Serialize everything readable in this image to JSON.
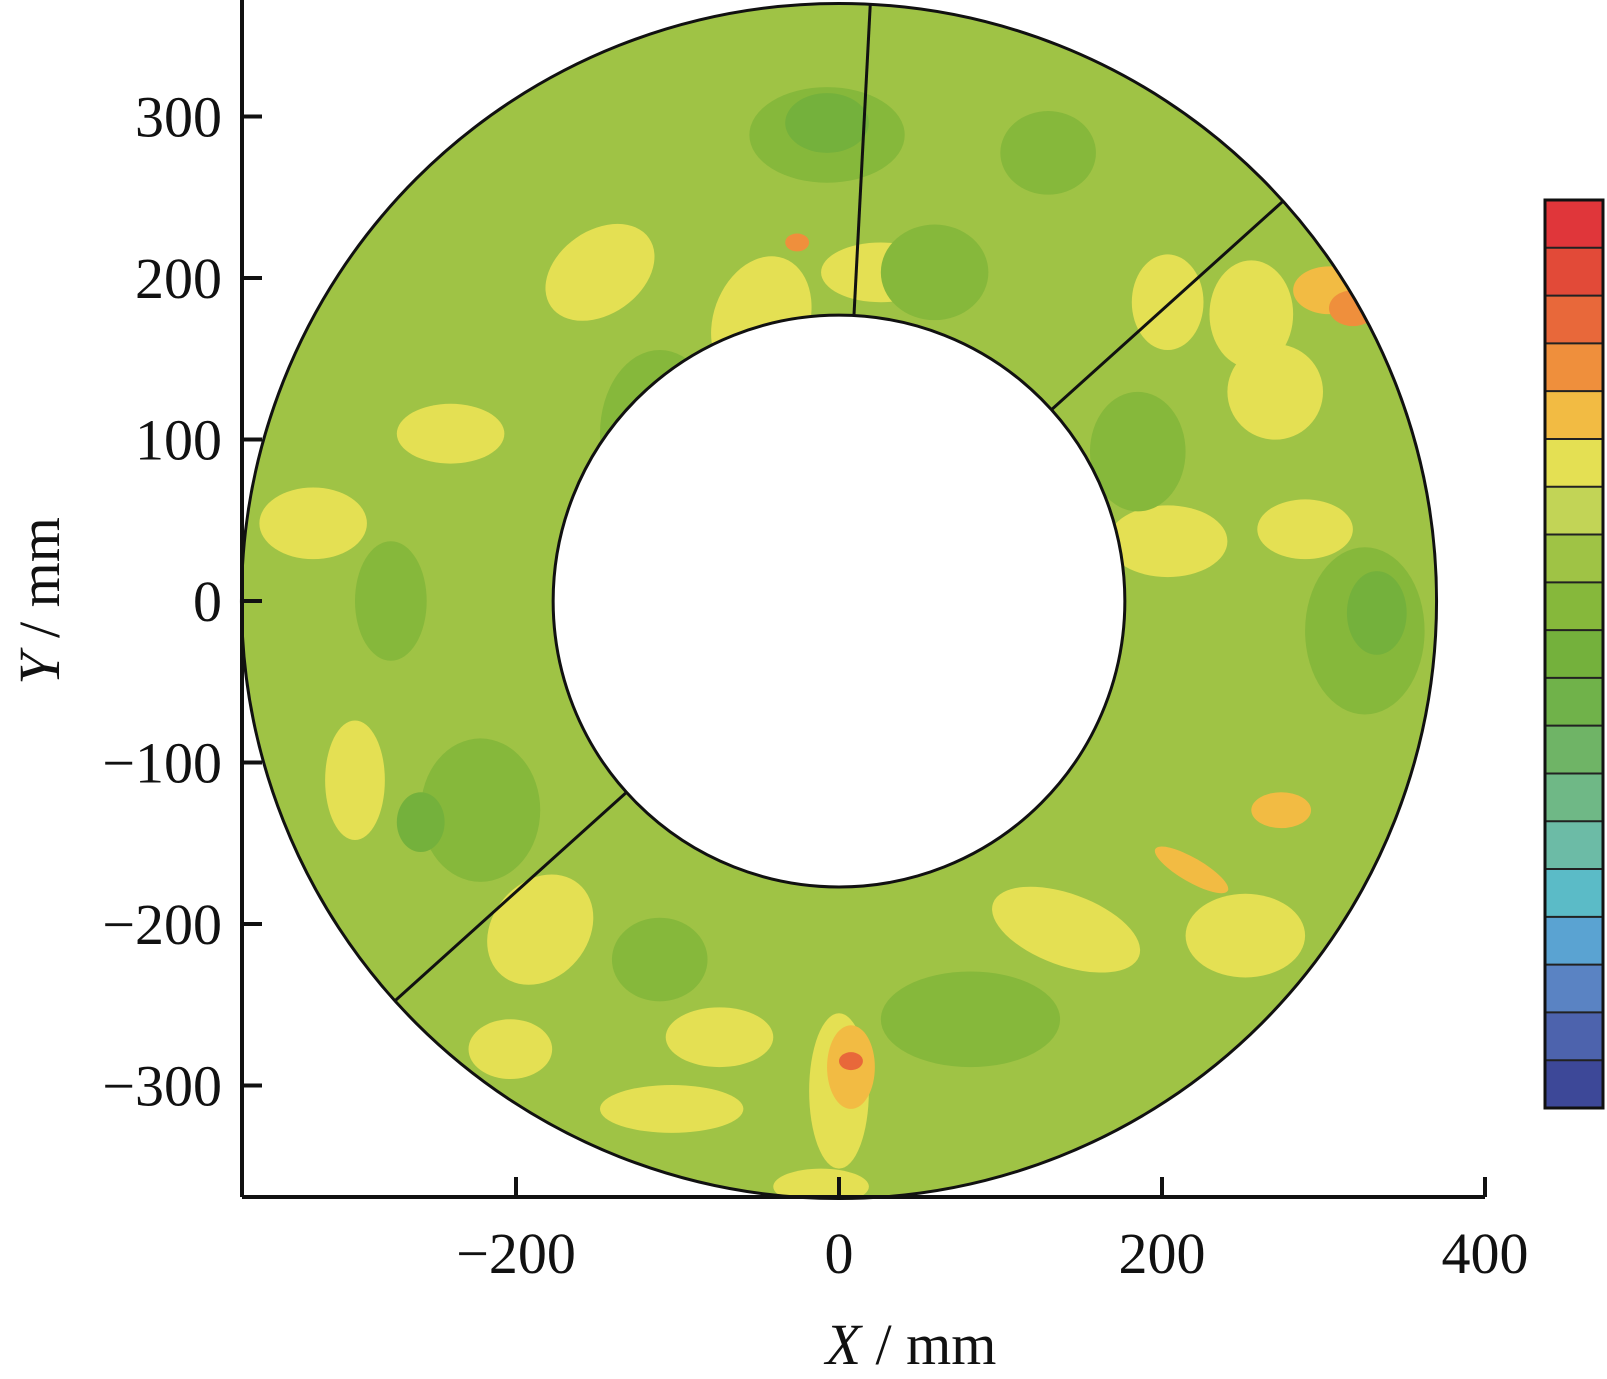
{
  "chart_data": {
    "type": "heatmap",
    "subtype": "annular contour map",
    "xlabel": {
      "var": "X",
      "unit": " / mm"
    },
    "ylabel": {
      "var": "Y",
      "unit": " / mm"
    },
    "x_ticks": [
      {
        "value": -200,
        "label": "−200"
      },
      {
        "value": 0,
        "label": "0"
      },
      {
        "value": 200,
        "label": "200"
      },
      {
        "value": 400,
        "label": "400"
      }
    ],
    "y_ticks": [
      {
        "value": 300,
        "label": "300"
      },
      {
        "value": 200,
        "label": "200"
      },
      {
        "value": 100,
        "label": "100"
      },
      {
        "value": 0,
        "label": "0"
      },
      {
        "value": -100,
        "label": "−100"
      },
      {
        "value": -200,
        "label": "−200"
      },
      {
        "value": -300,
        "label": "−300"
      }
    ],
    "xlim": [
      -370,
      400
    ],
    "ylim": [
      -370,
      370
    ],
    "grid": false,
    "annulus": {
      "outer_radius": 370,
      "inner_radius": 177,
      "segment_boundary_angles_deg": [
        87,
        42,
        222
      ]
    },
    "colorbar": {
      "position": "right",
      "tick_labels": "none",
      "colors": [
        "#e0363a",
        "#e24a38",
        "#e8683a",
        "#ef8f3c",
        "#f2bb43",
        "#e4e053",
        "#c2d456",
        "#9fc345",
        "#86b83b",
        "#74b13c",
        "#70b24a",
        "#6fb466",
        "#6fb886",
        "#6cbba6",
        "#5bbbc7",
        "#5aa3d2",
        "#5a83c3",
        "#4d63ad",
        "#3d4898"
      ]
    },
    "regions": [
      {
        "level": 5,
        "cx": -0.13,
        "cy": 0.47,
        "rx": 0.08,
        "ry": 0.11,
        "rot": 20
      },
      {
        "level": 5,
        "cx": 0.07,
        "cy": 0.55,
        "rx": 0.1,
        "ry": 0.05,
        "rot": 0
      },
      {
        "level": 5,
        "cx": -0.4,
        "cy": 0.55,
        "rx": 0.1,
        "ry": 0.07,
        "rot": -35
      },
      {
        "level": 5,
        "cx": 0.55,
        "cy": 0.5,
        "rx": 0.06,
        "ry": 0.08,
        "rot": 0
      },
      {
        "level": 5,
        "cx": 0.69,
        "cy": 0.48,
        "rx": 0.07,
        "ry": 0.09,
        "rot": 0
      },
      {
        "level": 5,
        "cx": 0.73,
        "cy": 0.35,
        "rx": 0.08,
        "ry": 0.08,
        "rot": 0
      },
      {
        "level": 5,
        "cx": 0.55,
        "cy": 0.1,
        "rx": 0.1,
        "ry": 0.06,
        "rot": 0
      },
      {
        "level": 5,
        "cx": 0.78,
        "cy": 0.12,
        "rx": 0.08,
        "ry": 0.05,
        "rot": 0
      },
      {
        "level": 5,
        "cx": -0.65,
        "cy": 0.28,
        "rx": 0.09,
        "ry": 0.05,
        "rot": 0
      },
      {
        "level": 5,
        "cx": -0.88,
        "cy": 0.13,
        "rx": 0.09,
        "ry": 0.06,
        "rot": 0
      },
      {
        "level": 5,
        "cx": -0.81,
        "cy": -0.3,
        "rx": 0.05,
        "ry": 0.1,
        "rot": 0
      },
      {
        "level": 5,
        "cx": -0.5,
        "cy": -0.55,
        "rx": 0.08,
        "ry": 0.1,
        "rot": 40
      },
      {
        "level": 5,
        "cx": -0.55,
        "cy": -0.75,
        "rx": 0.07,
        "ry": 0.05,
        "rot": 0
      },
      {
        "level": 5,
        "cx": -0.28,
        "cy": -0.85,
        "rx": 0.12,
        "ry": 0.04,
        "rot": 0
      },
      {
        "level": 5,
        "cx": -0.2,
        "cy": -0.73,
        "rx": 0.09,
        "ry": 0.05,
        "rot": 0
      },
      {
        "level": 5,
        "cx": 0.38,
        "cy": -0.55,
        "rx": 0.13,
        "ry": 0.06,
        "rot": 20
      },
      {
        "level": 5,
        "cx": 0.68,
        "cy": -0.56,
        "rx": 0.1,
        "ry": 0.07,
        "rot": 0
      },
      {
        "level": 5,
        "cx": -0.03,
        "cy": -0.98,
        "rx": 0.08,
        "ry": 0.03,
        "rot": 0
      },
      {
        "level": 5,
        "cx": 0.0,
        "cy": -0.82,
        "rx": 0.05,
        "ry": 0.13,
        "rot": 0
      },
      {
        "level": 4,
        "cx": 0.02,
        "cy": -0.78,
        "rx": 0.04,
        "ry": 0.07,
        "rot": 0
      },
      {
        "level": 4,
        "cx": 0.82,
        "cy": 0.52,
        "rx": 0.06,
        "ry": 0.04,
        "rot": 0
      },
      {
        "level": 4,
        "cx": 0.74,
        "cy": -0.35,
        "rx": 0.05,
        "ry": 0.03,
        "rot": 0
      },
      {
        "level": 4,
        "cx": 0.59,
        "cy": -0.45,
        "rx": 0.07,
        "ry": 0.02,
        "rot": 30
      },
      {
        "level": 3,
        "cx": 0.86,
        "cy": 0.49,
        "rx": 0.04,
        "ry": 0.03,
        "rot": 0
      },
      {
        "level": 3,
        "cx": -0.07,
        "cy": 0.6,
        "rx": 0.02,
        "ry": 0.015,
        "rot": 0
      },
      {
        "level": 2,
        "cx": 0.02,
        "cy": -0.77,
        "rx": 0.02,
        "ry": 0.015,
        "rot": 0
      },
      {
        "level": 8,
        "cx": -0.02,
        "cy": 0.78,
        "rx": 0.13,
        "ry": 0.08,
        "rot": 0
      },
      {
        "level": 8,
        "cx": 0.16,
        "cy": 0.55,
        "rx": 0.09,
        "ry": 0.08,
        "rot": 0
      },
      {
        "level": 8,
        "cx": -0.3,
        "cy": 0.28,
        "rx": 0.1,
        "ry": 0.14,
        "rot": 0
      },
      {
        "level": 8,
        "cx": 0.88,
        "cy": -0.05,
        "rx": 0.1,
        "ry": 0.14,
        "rot": 0
      },
      {
        "level": 8,
        "cx": 0.5,
        "cy": 0.25,
        "rx": 0.08,
        "ry": 0.1,
        "rot": 0
      },
      {
        "level": 8,
        "cx": -0.6,
        "cy": -0.35,
        "rx": 0.1,
        "ry": 0.12,
        "rot": 0
      },
      {
        "level": 8,
        "cx": 0.22,
        "cy": -0.7,
        "rx": 0.15,
        "ry": 0.08,
        "rot": 0
      },
      {
        "level": 8,
        "cx": -0.3,
        "cy": -0.6,
        "rx": 0.08,
        "ry": 0.07,
        "rot": 0
      },
      {
        "level": 8,
        "cx": 0.35,
        "cy": 0.75,
        "rx": 0.08,
        "ry": 0.07,
        "rot": 0
      },
      {
        "level": 8,
        "cx": -0.75,
        "cy": 0.0,
        "rx": 0.06,
        "ry": 0.1,
        "rot": 0
      },
      {
        "level": 9,
        "cx": -0.02,
        "cy": 0.8,
        "rx": 0.07,
        "ry": 0.05,
        "rot": 0
      },
      {
        "level": 9,
        "cx": 0.9,
        "cy": -0.02,
        "rx": 0.05,
        "ry": 0.07,
        "rot": 0
      },
      {
        "level": 9,
        "cx": -0.7,
        "cy": -0.37,
        "rx": 0.04,
        "ry": 0.05,
        "rot": 0
      }
    ]
  }
}
